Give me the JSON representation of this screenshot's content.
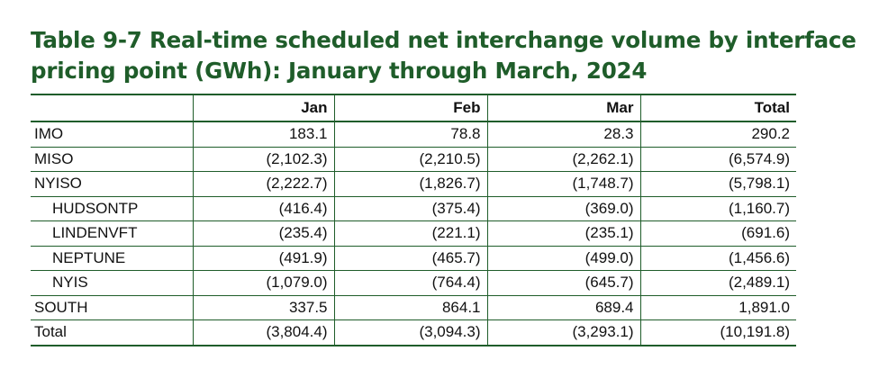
{
  "title": "Table 9-7 Real-time scheduled net interchange volume by interface pricing point (GWh): January through March, 2024",
  "table": {
    "columns": [
      "",
      "Jan",
      "Feb",
      "Mar",
      "Total"
    ],
    "rows": [
      {
        "label": "IMO",
        "jan": "183.1",
        "feb": "78.8",
        "mar": "28.3",
        "total": "290.2"
      },
      {
        "label": "MISO",
        "jan": "(2,102.3)",
        "feb": "(2,210.5)",
        "mar": "(2,262.1)",
        "total": "(6,574.9)"
      },
      {
        "label": "NYISO",
        "jan": "(2,222.7)",
        "feb": "(1,826.7)",
        "mar": "(1,748.7)",
        "total": "(5,798.1)"
      },
      {
        "label": "HUDSONTP",
        "jan": "(416.4)",
        "feb": "(375.4)",
        "mar": "(369.0)",
        "total": "(1,160.7)"
      },
      {
        "label": "LINDENVFT",
        "jan": "(235.4)",
        "feb": "(221.1)",
        "mar": "(235.1)",
        "total": "(691.6)"
      },
      {
        "label": "NEPTUNE",
        "jan": "(491.9)",
        "feb": "(465.7)",
        "mar": "(499.0)",
        "total": "(1,456.6)"
      },
      {
        "label": "NYIS",
        "jan": "(1,079.0)",
        "feb": "(764.4)",
        "mar": "(645.7)",
        "total": "(2,489.1)"
      },
      {
        "label": "SOUTH",
        "jan": "337.5",
        "feb": "864.1",
        "mar": "689.4",
        "total": "1,891.0"
      },
      {
        "label": "Total",
        "jan": "(3,804.4)",
        "feb": "(3,094.3)",
        "mar": "(3,293.1)",
        "total": "(10,191.8)"
      }
    ]
  },
  "colors": {
    "accent_green": "#1f5d2a",
    "text": "#111111",
    "background": "#ffffff"
  }
}
